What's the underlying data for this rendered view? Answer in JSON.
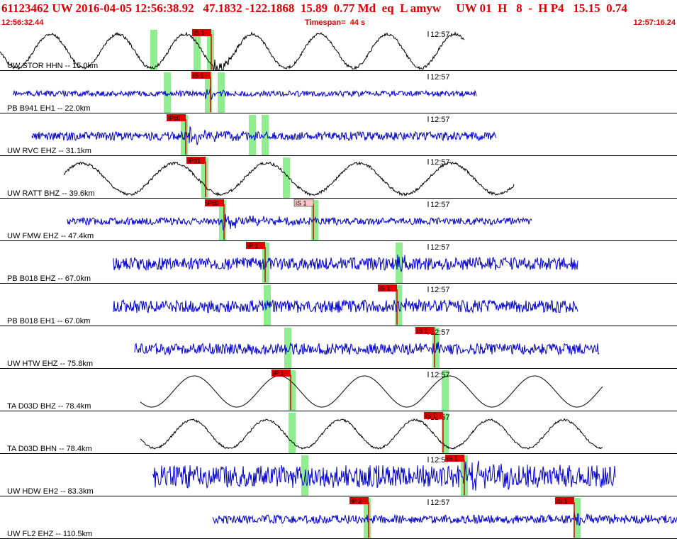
{
  "header": {
    "title": "61123462 UW 2016-04-05 12:56:38.92   47.1832 -122.1868  15.89  0.77 Md  eq  L amyw     UW 01  H   8  -  H P4   15.15  0.74",
    "start_time": "12:56:32.44",
    "timespan": "Timespan=  44 s",
    "end_time": "12:57:16.24"
  },
  "colors": {
    "header_text": "#e00000",
    "blue_trace": "#0000d0",
    "black_trace": "#000000",
    "pick_red": "#e00000",
    "pick_light": "#ffc8c8",
    "window_green": "#90ee90"
  },
  "minute_label": "12:57",
  "traces": [
    {
      "label": "UW STOR HHN -- 15.0km",
      "color": "black",
      "picks": [
        {
          "text": "iS 1",
          "style": "red"
        }
      ]
    },
    {
      "label": "PB B941 EH1 -- 22.0km",
      "color": "blue",
      "picks": [
        {
          "text": "iS 1",
          "style": "red"
        }
      ]
    },
    {
      "label": "UW RVC EHZ -- 31.1km",
      "color": "blue",
      "picks": [
        {
          "text": "iPc0",
          "style": "red"
        }
      ]
    },
    {
      "label": "UW RATT BHZ -- 39.6km",
      "color": "black",
      "picks": [
        {
          "text": "iPd1",
          "style": "red"
        }
      ]
    },
    {
      "label": "UW FMW EHZ -- 47.4km",
      "color": "blue",
      "picks": [
        {
          "text": "iPc0",
          "style": "red"
        },
        {
          "text": "iS 1",
          "style": "light"
        }
      ]
    },
    {
      "label": "PB B018 EHZ -- 67.0km",
      "color": "blue",
      "picks": [
        {
          "text": "iP 1",
          "style": "red"
        }
      ]
    },
    {
      "label": "PB B018 EH1 -- 67.0km",
      "color": "blue",
      "picks": [
        {
          "text": "iS 1",
          "style": "red"
        }
      ]
    },
    {
      "label": "UW HTW EHZ -- 75.8km",
      "color": "blue",
      "picks": [
        {
          "text": "iS 1",
          "style": "red"
        }
      ]
    },
    {
      "label": "TA D03D BHZ -- 78.4km",
      "color": "black",
      "picks": [
        {
          "text": "iP 1",
          "style": "red"
        }
      ]
    },
    {
      "label": "TA D03D BHN -- 78.4km",
      "color": "black",
      "picks": [
        {
          "text": "iS 1",
          "style": "red"
        }
      ]
    },
    {
      "label": "UW HDW EH2 -- 83.3km",
      "color": "blue",
      "picks": [
        {
          "text": "iS 1",
          "style": "red"
        }
      ]
    },
    {
      "label": "UW FL2 EHZ -- 110.5km",
      "color": "blue",
      "picks": [
        {
          "text": "iP 2",
          "style": "red"
        },
        {
          "text": "iS 1",
          "style": "red"
        }
      ]
    }
  ]
}
